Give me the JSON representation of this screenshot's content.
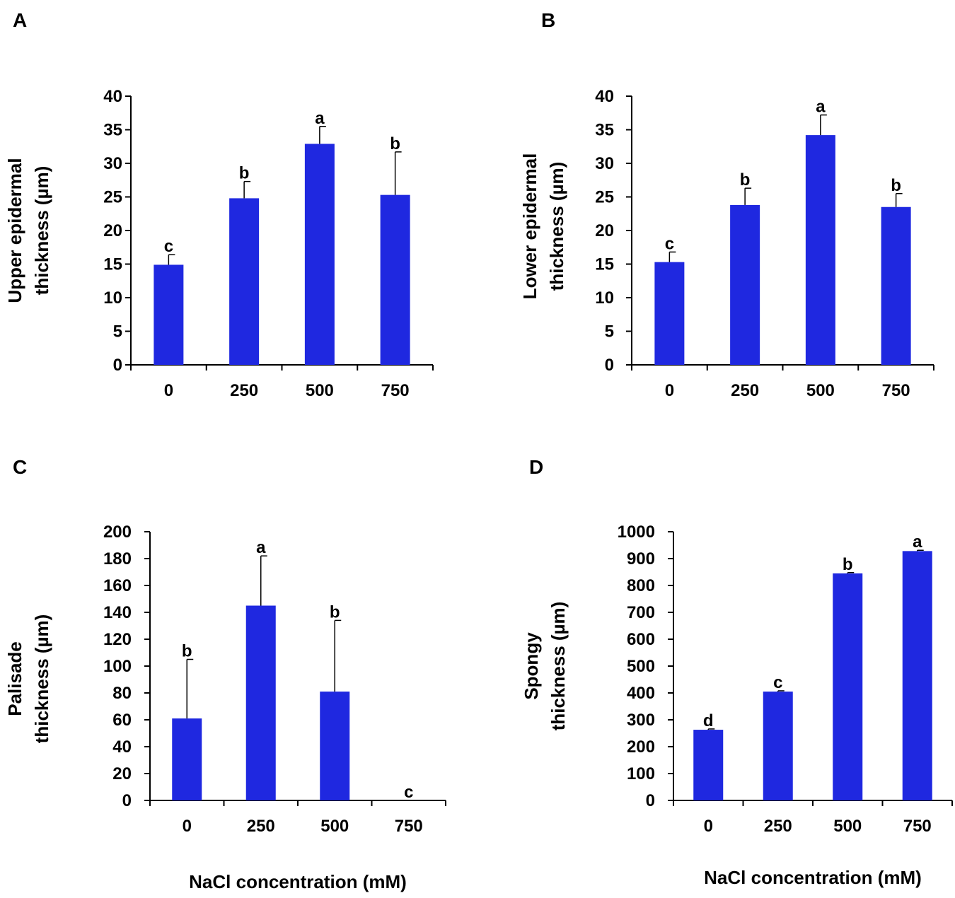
{
  "colors": {
    "bar": "#1f28e0",
    "axis": "#000000",
    "text": "#000000",
    "background": "#ffffff"
  },
  "chart_data": [
    {
      "panel": "A",
      "type": "bar",
      "categories": [
        "0",
        "250",
        "500",
        "750"
      ],
      "values": [
        14.9,
        24.8,
        32.9,
        25.3
      ],
      "errors": [
        1.5,
        2.5,
        2.6,
        6.4
      ],
      "significance": [
        "c",
        "b",
        "a",
        "b"
      ],
      "ylabel": [
        "Upper epidermal",
        "thickness (µm)"
      ],
      "xlabel": "",
      "ylim": [
        0,
        40
      ],
      "yticks": [
        0,
        5,
        10,
        15,
        20,
        25,
        30,
        35,
        40
      ]
    },
    {
      "panel": "B",
      "type": "bar",
      "categories": [
        "0",
        "250",
        "500",
        "750"
      ],
      "values": [
        15.3,
        23.8,
        34.2,
        23.5
      ],
      "errors": [
        1.5,
        2.5,
        3.0,
        2.0
      ],
      "significance": [
        "c",
        "b",
        "a",
        "b"
      ],
      "ylabel": [
        "Lower epidermal",
        "thickness (µm)"
      ],
      "xlabel": "",
      "ylim": [
        0,
        40
      ],
      "yticks": [
        0,
        5,
        10,
        15,
        20,
        25,
        30,
        35,
        40
      ]
    },
    {
      "panel": "C",
      "type": "bar",
      "categories": [
        "0",
        "250",
        "500",
        "750"
      ],
      "values": [
        61,
        145,
        81,
        0
      ],
      "errors": [
        44,
        37,
        53,
        0
      ],
      "significance": [
        "b",
        "a",
        "b",
        "c"
      ],
      "ylabel": [
        "Palisade",
        "thickness (µm)"
      ],
      "xlabel": "NaCl concentration (mM)",
      "ylim": [
        0,
        200
      ],
      "yticks": [
        0,
        20,
        40,
        60,
        80,
        100,
        120,
        140,
        160,
        180,
        200
      ]
    },
    {
      "panel": "D",
      "type": "bar",
      "categories": [
        "0",
        "250",
        "500",
        "750"
      ],
      "values": [
        263,
        405,
        845,
        928
      ],
      "errors": [
        3,
        3,
        3,
        3
      ],
      "significance": [
        "d",
        "c",
        "b",
        "a"
      ],
      "ylabel": [
        "Spongy",
        "thickness (µm)"
      ],
      "xlabel": "NaCl concentration (mM)",
      "ylim": [
        0,
        1000
      ],
      "yticks": [
        0,
        100,
        200,
        300,
        400,
        500,
        600,
        700,
        800,
        900,
        1000
      ]
    }
  ]
}
